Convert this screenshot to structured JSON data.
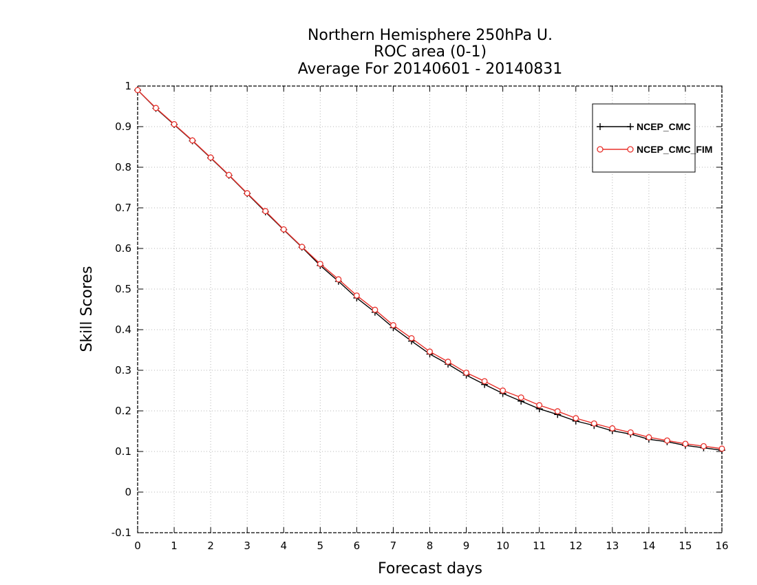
{
  "chart_data": {
    "type": "line",
    "title": [
      "Northern Hemisphere 250hPa U.",
      "ROC area (0-1)",
      "Average For 20140601 - 20140831"
    ],
    "xlabel": "Forecast days",
    "ylabel": "Skill Scores",
    "xlim": [
      0,
      16
    ],
    "ylim": [
      -0.1,
      1
    ],
    "x_ticks": [
      0,
      1,
      2,
      3,
      4,
      5,
      6,
      7,
      8,
      9,
      10,
      11,
      12,
      13,
      14,
      15,
      16
    ],
    "x_tick_labels": [
      "0",
      "1",
      "2",
      "3",
      "4",
      "5",
      "6",
      "7",
      "8",
      "9",
      "10",
      "11",
      "12",
      "13",
      "14",
      "15",
      "16"
    ],
    "y_ticks": [
      -0.1,
      0,
      0.1,
      0.2,
      0.3,
      0.4,
      0.5,
      0.6,
      0.7,
      0.8,
      0.9,
      1
    ],
    "y_tick_labels": [
      "-0.1",
      "0",
      "0.1",
      "0.2",
      "0.3",
      "0.4",
      "0.5",
      "0.6",
      "0.7",
      "0.8",
      "0.9",
      "1"
    ],
    "grid": true,
    "legend_position": "top-right",
    "x": [
      0,
      0.5,
      1,
      1.5,
      2,
      2.5,
      3,
      3.5,
      4,
      4.5,
      5,
      5.5,
      6,
      6.5,
      7,
      7.5,
      8,
      8.5,
      9,
      9.5,
      10,
      10.5,
      11,
      11.5,
      12,
      12.5,
      13,
      13.5,
      14,
      14.5,
      15,
      15.5,
      16
    ],
    "series": [
      {
        "name": "NCEP_CMC",
        "color": "#000000",
        "marker": "plus",
        "values": [
          0.99,
          0.945,
          0.905,
          0.865,
          0.823,
          0.78,
          0.735,
          0.69,
          0.646,
          0.603,
          0.558,
          0.519,
          0.478,
          0.443,
          0.405,
          0.372,
          0.34,
          0.315,
          0.288,
          0.265,
          0.243,
          0.224,
          0.205,
          0.191,
          0.175,
          0.164,
          0.151,
          0.143,
          0.13,
          0.124,
          0.115,
          0.109,
          0.103
        ]
      },
      {
        "name": "NCEP_CMC_FIM",
        "color": "#e8302a",
        "marker": "circle",
        "values": [
          0.99,
          0.946,
          0.906,
          0.866,
          0.824,
          0.781,
          0.736,
          0.692,
          0.647,
          0.604,
          0.562,
          0.524,
          0.484,
          0.449,
          0.411,
          0.379,
          0.346,
          0.321,
          0.294,
          0.273,
          0.25,
          0.233,
          0.214,
          0.199,
          0.182,
          0.169,
          0.157,
          0.147,
          0.135,
          0.127,
          0.119,
          0.113,
          0.107
        ]
      }
    ]
  }
}
